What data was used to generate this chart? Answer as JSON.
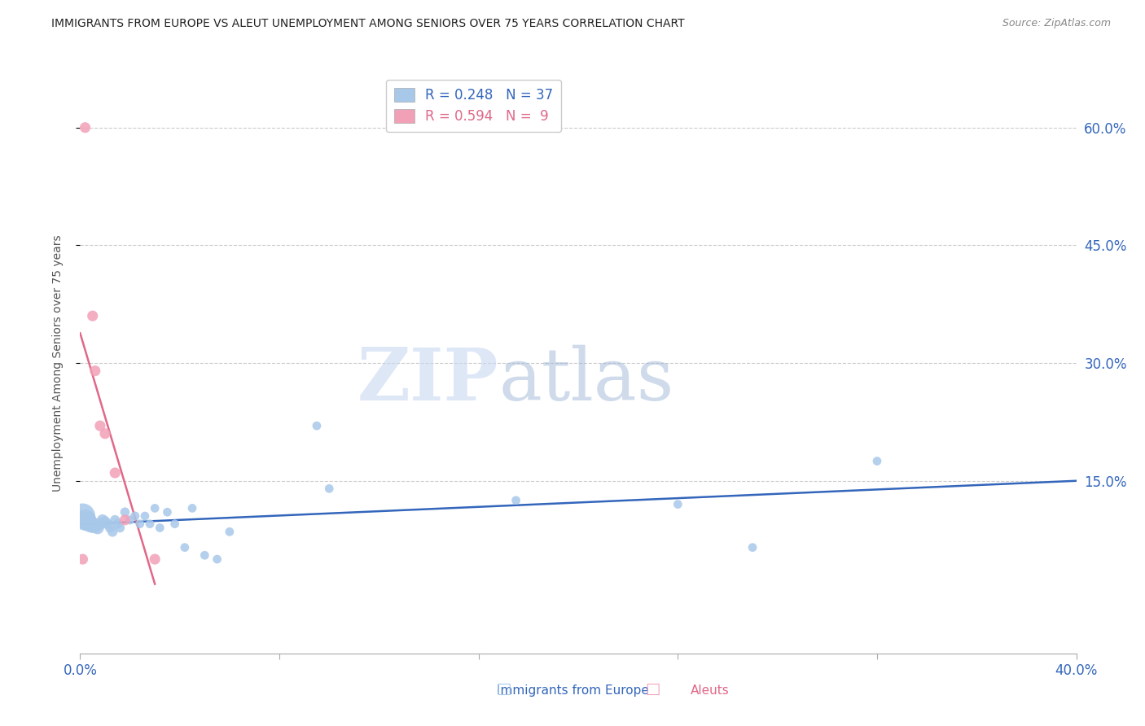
{
  "title": "IMMIGRANTS FROM EUROPE VS ALEUT UNEMPLOYMENT AMONG SENIORS OVER 75 YEARS CORRELATION CHART",
  "source": "Source: ZipAtlas.com",
  "ylabel": "Unemployment Among Seniors over 75 years",
  "watermark_zip": "ZIP",
  "watermark_atlas": "atlas",
  "xlim": [
    0.0,
    0.4
  ],
  "ylim": [
    -0.07,
    0.67
  ],
  "yticks": [
    0.15,
    0.3,
    0.45,
    0.6
  ],
  "ytick_labels": [
    "15.0%",
    "30.0%",
    "45.0%",
    "60.0%"
  ],
  "xticks": [
    0.0,
    0.08,
    0.16,
    0.24,
    0.32,
    0.4
  ],
  "xtick_labels": [
    "0.0%",
    "",
    "",
    "",
    "",
    "40.0%"
  ],
  "blue_R": 0.248,
  "blue_N": 37,
  "pink_R": 0.594,
  "pink_N": 9,
  "blue_color": "#a8c8ea",
  "pink_color": "#f2a0b8",
  "blue_line_color": "#3366bb",
  "pink_line_color": "#e06888",
  "blue_scatter_x": [
    0.001,
    0.002,
    0.003,
    0.004,
    0.005,
    0.006,
    0.007,
    0.008,
    0.009,
    0.01,
    0.011,
    0.012,
    0.013,
    0.014,
    0.015,
    0.016,
    0.018,
    0.02,
    0.022,
    0.024,
    0.026,
    0.028,
    0.03,
    0.032,
    0.035,
    0.038,
    0.042,
    0.045,
    0.05,
    0.055,
    0.06,
    0.095,
    0.1,
    0.175,
    0.24,
    0.27,
    0.32
  ],
  "blue_scatter_y": [
    0.105,
    0.1,
    0.098,
    0.095,
    0.093,
    0.092,
    0.09,
    0.095,
    0.1,
    0.098,
    0.095,
    0.09,
    0.085,
    0.1,
    0.095,
    0.09,
    0.11,
    0.1,
    0.105,
    0.095,
    0.105,
    0.095,
    0.115,
    0.09,
    0.11,
    0.095,
    0.065,
    0.115,
    0.055,
    0.05,
    0.085,
    0.22,
    0.14,
    0.125,
    0.12,
    0.065,
    0.175
  ],
  "blue_scatter_size": [
    500,
    350,
    280,
    220,
    180,
    150,
    130,
    110,
    100,
    90,
    85,
    80,
    80,
    75,
    75,
    70,
    70,
    65,
    65,
    60,
    60,
    60,
    60,
    60,
    60,
    60,
    60,
    60,
    60,
    60,
    60,
    60,
    60,
    60,
    60,
    60,
    60
  ],
  "pink_scatter_x": [
    0.001,
    0.002,
    0.005,
    0.006,
    0.008,
    0.01,
    0.014,
    0.018,
    0.03
  ],
  "pink_scatter_y": [
    0.05,
    0.6,
    0.36,
    0.29,
    0.22,
    0.21,
    0.16,
    0.1,
    0.05
  ],
  "pink_scatter_size": [
    90,
    90,
    90,
    90,
    90,
    90,
    90,
    90,
    90
  ],
  "legend_label_blue": "Immigrants from Europe",
  "legend_label_pink": "Aleuts",
  "grid_color": "#cccccc",
  "background_color": "#ffffff",
  "title_color": "#222222",
  "axis_tick_color": "#3366bb",
  "right_ytick_color": "#3366bb"
}
